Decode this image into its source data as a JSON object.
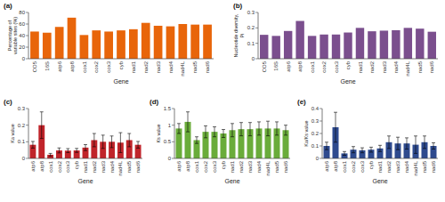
{
  "chart_data": [
    {
      "type": "bar",
      "title": "(a)",
      "x_label": "Gene",
      "y_label": "Percentage of variable sites (%)",
      "categories": [
        "CO5",
        "16S",
        "atp6",
        "atp8",
        "cox1",
        "cox2",
        "cox3",
        "cyb",
        "nad1",
        "nad2",
        "nad3",
        "nad4",
        "nad4L",
        "nad5",
        "nad6"
      ],
      "values": [
        47,
        45,
        55,
        71,
        41,
        49,
        47,
        49,
        51,
        62,
        57,
        56,
        60,
        59,
        59
      ],
      "color": "#E8650A",
      "ylim": [
        0,
        80
      ],
      "yticks": [
        0,
        20,
        40,
        60,
        80
      ]
    },
    {
      "type": "bar",
      "title": "(b)",
      "x_label": "Gene",
      "y_label": "Nucleotide diversity, Pi",
      "categories": [
        "CO5",
        "16S",
        "atp6",
        "atp8",
        "cox1",
        "cox2",
        "cox3",
        "cyb",
        "nad1",
        "nad2",
        "nad3",
        "nad4",
        "nad4L",
        "nad5",
        "nad6"
      ],
      "values": [
        0.155,
        0.148,
        0.18,
        0.245,
        0.148,
        0.157,
        0.157,
        0.17,
        0.2,
        0.178,
        0.182,
        0.185,
        0.2,
        0.195,
        0.175
      ],
      "color": "#7B4F8E",
      "ylim": [
        0,
        0.3
      ],
      "yticks": [
        0,
        0.1,
        0.2,
        0.3
      ]
    },
    {
      "type": "bar",
      "title": "(c)",
      "x_label": "Gene",
      "y_label": "Ka value",
      "categories": [
        "atp6",
        "atp8",
        "cox1",
        "cox2",
        "cox3",
        "cyb",
        "nad1",
        "nad2",
        "nad3",
        "nad4",
        "nad4L",
        "nad5",
        "nad6"
      ],
      "values": [
        0.082,
        0.2,
        0.022,
        0.048,
        0.047,
        0.048,
        0.065,
        0.11,
        0.1,
        0.1,
        0.095,
        0.11,
        0.082
      ],
      "errors": [
        0.02,
        0.08,
        0.008,
        0.015,
        0.012,
        0.012,
        0.018,
        0.04,
        0.04,
        0.035,
        0.06,
        0.04,
        0.02
      ],
      "color": "#C0242A",
      "ylim": [
        0,
        0.3
      ],
      "yticks": [
        0,
        0.1,
        0.2,
        0.3
      ]
    },
    {
      "type": "bar",
      "title": "(d)",
      "x_label": "Gene",
      "y_label": "Ks value",
      "categories": [
        "atp6",
        "atp8",
        "cox1",
        "cox2",
        "cox3",
        "cyb",
        "nad1",
        "nad2",
        "nad3",
        "nad4",
        "nad4L",
        "nad5",
        "nad6"
      ],
      "values": [
        0.9,
        1.1,
        0.55,
        0.8,
        0.8,
        0.75,
        0.85,
        0.88,
        0.88,
        0.9,
        0.9,
        0.9,
        0.85
      ],
      "errors": [
        0.15,
        0.3,
        0.1,
        0.18,
        0.15,
        0.12,
        0.2,
        0.2,
        0.2,
        0.2,
        0.22,
        0.2,
        0.15
      ],
      "color": "#6AAC3A",
      "ylim": [
        0,
        1.5
      ],
      "yticks": [
        0,
        0.5,
        1,
        1.5
      ]
    },
    {
      "type": "bar",
      "title": "(e)",
      "x_label": "Gene",
      "y_label": "Ka/Ks value",
      "categories": [
        "atp6",
        "atp8",
        "cox1",
        "cox2",
        "cox3",
        "cyb",
        "nad1",
        "nad2",
        "nad3",
        "nad4",
        "nad4L",
        "nad5",
        "nad6"
      ],
      "values": [
        0.1,
        0.25,
        0.04,
        0.07,
        0.065,
        0.07,
        0.08,
        0.13,
        0.12,
        0.12,
        0.11,
        0.13,
        0.1
      ],
      "errors": [
        0.03,
        0.12,
        0.015,
        0.025,
        0.02,
        0.02,
        0.025,
        0.05,
        0.05,
        0.045,
        0.07,
        0.05,
        0.025
      ],
      "color": "#2E4A8E",
      "ylim": [
        0,
        0.4
      ],
      "yticks": [
        0,
        0.1,
        0.2,
        0.3,
        0.4
      ]
    }
  ]
}
